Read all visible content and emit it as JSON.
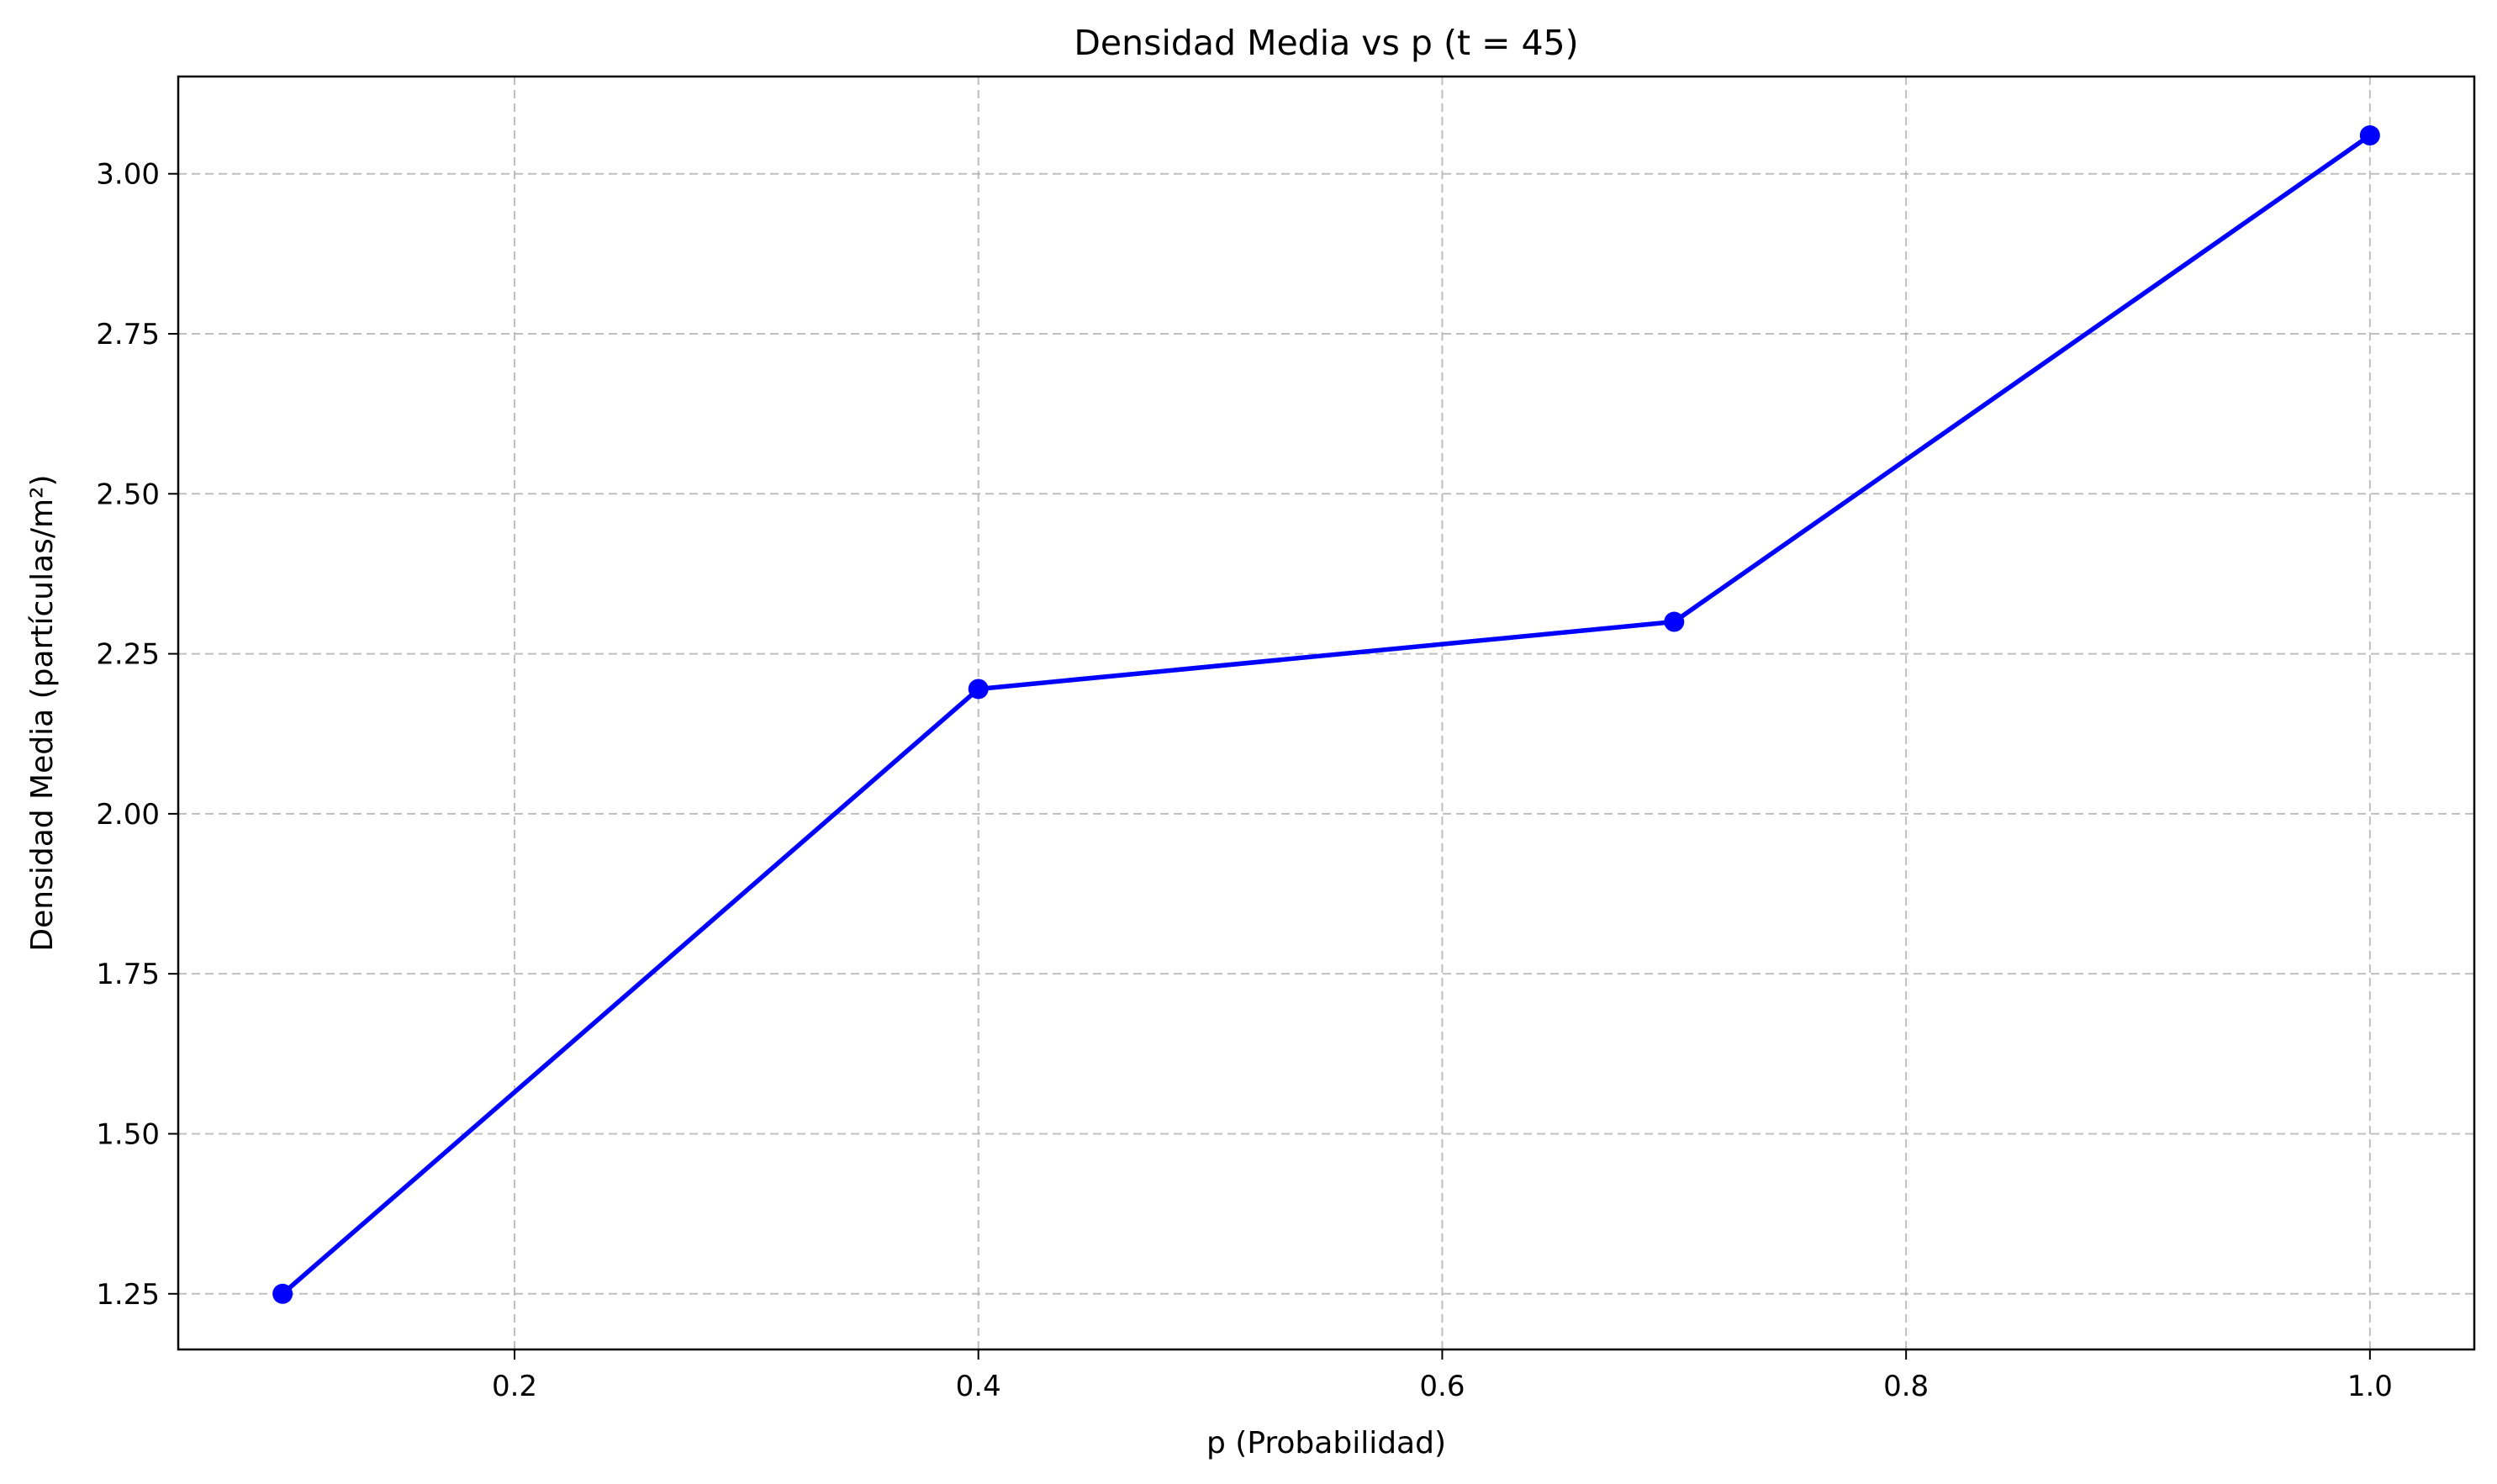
{
  "chart_data": {
    "type": "line",
    "title": "Densidad Media vs p (t = 45)",
    "xlabel": "p (Probabilidad)",
    "ylabel": "Densidad Media (partículas/m²)",
    "xlim": [
      0.055,
      1.045
    ],
    "ylim": [
      1.163,
      3.152
    ],
    "xticks": [
      0.2,
      0.4,
      0.6,
      0.8,
      1.0
    ],
    "xtick_labels": [
      "0.2",
      "0.4",
      "0.6",
      "0.8",
      "1.0"
    ],
    "yticks": [
      1.25,
      1.5,
      1.75,
      2.0,
      2.25,
      2.5,
      2.75,
      3.0
    ],
    "ytick_labels": [
      "1.25",
      "1.50",
      "1.75",
      "2.00",
      "2.25",
      "2.50",
      "2.75",
      "3.00"
    ],
    "grid": true,
    "series": [
      {
        "color": "#0000ff",
        "marker": "circle",
        "x": [
          0.1,
          0.4,
          0.7,
          1.0
        ],
        "y": [
          1.25,
          2.195,
          2.3,
          3.06
        ]
      }
    ]
  }
}
